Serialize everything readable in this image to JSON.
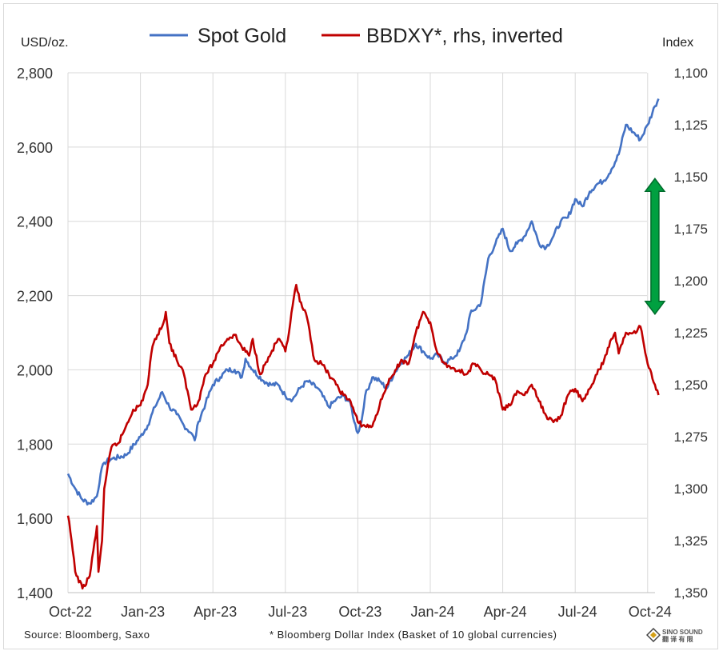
{
  "chart_data": {
    "type": "line",
    "legend": {
      "placement": "top",
      "items": [
        "Spot Gold",
        "BBDXY*, rhs, inverted"
      ]
    },
    "y_left": {
      "label": "USD/oz.",
      "range": [
        1400,
        2800
      ],
      "ticks": [
        "1,400",
        "1,600",
        "1,800",
        "2,000",
        "2,200",
        "2,400",
        "2,600",
        "2,800"
      ]
    },
    "y_right": {
      "label": "Index",
      "range": [
        1100,
        1350
      ],
      "inverted": true,
      "ticks": [
        "1,100",
        "1,125",
        "1,150",
        "1,175",
        "1,200",
        "1,225",
        "1,250",
        "1,275",
        "1,300",
        "1,325",
        "1,350"
      ]
    },
    "x": {
      "range": [
        0,
        8.2
      ],
      "tick_labels": [
        "Oct-22",
        "Jan-23",
        "Apr-23",
        "Jul-23",
        "Oct-23",
        "Jan-24",
        "Apr-24",
        "Jul-24",
        "Oct-24"
      ]
    },
    "grid": true,
    "series": [
      {
        "name": "Spot Gold",
        "axis": "left",
        "color": "#4472c4",
        "points": [
          [
            0.0,
            1720
          ],
          [
            0.1,
            1680
          ],
          [
            0.2,
            1650
          ],
          [
            0.3,
            1640
          ],
          [
            0.4,
            1660
          ],
          [
            0.45,
            1720
          ],
          [
            0.5,
            1750
          ],
          [
            0.6,
            1760
          ],
          [
            0.8,
            1770
          ],
          [
            1.0,
            1820
          ],
          [
            1.1,
            1850
          ],
          [
            1.2,
            1900
          ],
          [
            1.3,
            1940
          ],
          [
            1.4,
            1900
          ],
          [
            1.5,
            1880
          ],
          [
            1.6,
            1850
          ],
          [
            1.7,
            1830
          ],
          [
            1.75,
            1810
          ],
          [
            1.8,
            1860
          ],
          [
            1.9,
            1910
          ],
          [
            2.0,
            1960
          ],
          [
            2.1,
            1980
          ],
          [
            2.2,
            2000
          ],
          [
            2.3,
            2000
          ],
          [
            2.4,
            1980
          ],
          [
            2.45,
            2030
          ],
          [
            2.55,
            2000
          ],
          [
            2.7,
            1970
          ],
          [
            2.8,
            1960
          ],
          [
            2.9,
            1960
          ],
          [
            3.0,
            1930
          ],
          [
            3.1,
            1920
          ],
          [
            3.2,
            1950
          ],
          [
            3.3,
            1970
          ],
          [
            3.45,
            1950
          ],
          [
            3.6,
            1900
          ],
          [
            3.7,
            1920
          ],
          [
            3.8,
            1930
          ],
          [
            3.9,
            1910
          ],
          [
            3.95,
            1860
          ],
          [
            4.0,
            1830
          ],
          [
            4.05,
            1860
          ],
          [
            4.1,
            1930
          ],
          [
            4.2,
            1980
          ],
          [
            4.3,
            1970
          ],
          [
            4.4,
            1950
          ],
          [
            4.5,
            1990
          ],
          [
            4.6,
            2020
          ],
          [
            4.7,
            2040
          ],
          [
            4.8,
            2070
          ],
          [
            4.9,
            2050
          ],
          [
            5.0,
            2030
          ],
          [
            5.1,
            2040
          ],
          [
            5.2,
            2020
          ],
          [
            5.3,
            2030
          ],
          [
            5.4,
            2050
          ],
          [
            5.5,
            2100
          ],
          [
            5.55,
            2150
          ],
          [
            5.6,
            2160
          ],
          [
            5.7,
            2180
          ],
          [
            5.8,
            2300
          ],
          [
            5.9,
            2340
          ],
          [
            6.0,
            2380
          ],
          [
            6.1,
            2320
          ],
          [
            6.2,
            2340
          ],
          [
            6.3,
            2360
          ],
          [
            6.4,
            2400
          ],
          [
            6.5,
            2340
          ],
          [
            6.6,
            2330
          ],
          [
            6.7,
            2360
          ],
          [
            6.8,
            2400
          ],
          [
            6.9,
            2410
          ],
          [
            7.0,
            2460
          ],
          [
            7.1,
            2440
          ],
          [
            7.2,
            2480
          ],
          [
            7.3,
            2500
          ],
          [
            7.4,
            2510
          ],
          [
            7.5,
            2540
          ],
          [
            7.6,
            2580
          ],
          [
            7.7,
            2660
          ],
          [
            7.8,
            2640
          ],
          [
            7.9,
            2620
          ],
          [
            8.0,
            2660
          ],
          [
            8.1,
            2710
          ],
          [
            8.15,
            2730
          ]
        ]
      },
      {
        "name": "BBDXY*, rhs, inverted",
        "axis": "right",
        "color": "#c00000",
        "points": [
          [
            0.0,
            1313
          ],
          [
            0.05,
            1325
          ],
          [
            0.1,
            1340
          ],
          [
            0.2,
            1348
          ],
          [
            0.3,
            1342
          ],
          [
            0.4,
            1318
          ],
          [
            0.42,
            1340
          ],
          [
            0.47,
            1325
          ],
          [
            0.5,
            1300
          ],
          [
            0.6,
            1280
          ],
          [
            0.7,
            1278
          ],
          [
            0.8,
            1270
          ],
          [
            0.9,
            1262
          ],
          [
            1.0,
            1260
          ],
          [
            1.1,
            1250
          ],
          [
            1.15,
            1235
          ],
          [
            1.2,
            1228
          ],
          [
            1.3,
            1222
          ],
          [
            1.35,
            1215
          ],
          [
            1.4,
            1230
          ],
          [
            1.5,
            1238
          ],
          [
            1.6,
            1245
          ],
          [
            1.7,
            1262
          ],
          [
            1.8,
            1258
          ],
          [
            1.9,
            1245
          ],
          [
            2.0,
            1240
          ],
          [
            2.1,
            1232
          ],
          [
            2.2,
            1228
          ],
          [
            2.3,
            1226
          ],
          [
            2.4,
            1232
          ],
          [
            2.5,
            1236
          ],
          [
            2.55,
            1228
          ],
          [
            2.65,
            1245
          ],
          [
            2.8,
            1235
          ],
          [
            2.9,
            1228
          ],
          [
            3.0,
            1234
          ],
          [
            3.05,
            1225
          ],
          [
            3.1,
            1212
          ],
          [
            3.15,
            1202
          ],
          [
            3.2,
            1210
          ],
          [
            3.3,
            1218
          ],
          [
            3.4,
            1238
          ],
          [
            3.5,
            1240
          ],
          [
            3.6,
            1245
          ],
          [
            3.7,
            1250
          ],
          [
            3.8,
            1255
          ],
          [
            3.9,
            1258
          ],
          [
            4.0,
            1268
          ],
          [
            4.1,
            1270
          ],
          [
            4.2,
            1270
          ],
          [
            4.3,
            1260
          ],
          [
            4.4,
            1250
          ],
          [
            4.5,
            1245
          ],
          [
            4.6,
            1238
          ],
          [
            4.7,
            1240
          ],
          [
            4.8,
            1225
          ],
          [
            4.9,
            1215
          ],
          [
            5.0,
            1220
          ],
          [
            5.1,
            1235
          ],
          [
            5.2,
            1240
          ],
          [
            5.3,
            1242
          ],
          [
            5.4,
            1243
          ],
          [
            5.5,
            1245
          ],
          [
            5.6,
            1240
          ],
          [
            5.7,
            1243
          ],
          [
            5.8,
            1245
          ],
          [
            5.9,
            1248
          ],
          [
            6.0,
            1262
          ],
          [
            6.1,
            1260
          ],
          [
            6.2,
            1253
          ],
          [
            6.3,
            1255
          ],
          [
            6.4,
            1250
          ],
          [
            6.5,
            1258
          ],
          [
            6.6,
            1265
          ],
          [
            6.7,
            1268
          ],
          [
            6.8,
            1265
          ],
          [
            6.9,
            1255
          ],
          [
            7.0,
            1252
          ],
          [
            7.1,
            1258
          ],
          [
            7.2,
            1252
          ],
          [
            7.3,
            1245
          ],
          [
            7.4,
            1238
          ],
          [
            7.5,
            1228
          ],
          [
            7.55,
            1225
          ],
          [
            7.6,
            1235
          ],
          [
            7.7,
            1225
          ],
          [
            7.8,
            1225
          ],
          [
            7.9,
            1222
          ],
          [
            8.0,
            1240
          ],
          [
            8.1,
            1250
          ],
          [
            8.15,
            1255
          ]
        ]
      }
    ],
    "annotations": [
      {
        "type": "double-arrow",
        "color": "#00a040",
        "x": 8.1,
        "left_value_range": [
          2515,
          2150
        ]
      }
    ]
  },
  "footer": {
    "source": "Source: Bloomberg, Saxo",
    "note": "* Bloomberg Dollar Index (Basket of 10 global currencies)"
  },
  "logo": {
    "line1": "SINO SOUND",
    "line2": "翻 译 有 限"
  }
}
